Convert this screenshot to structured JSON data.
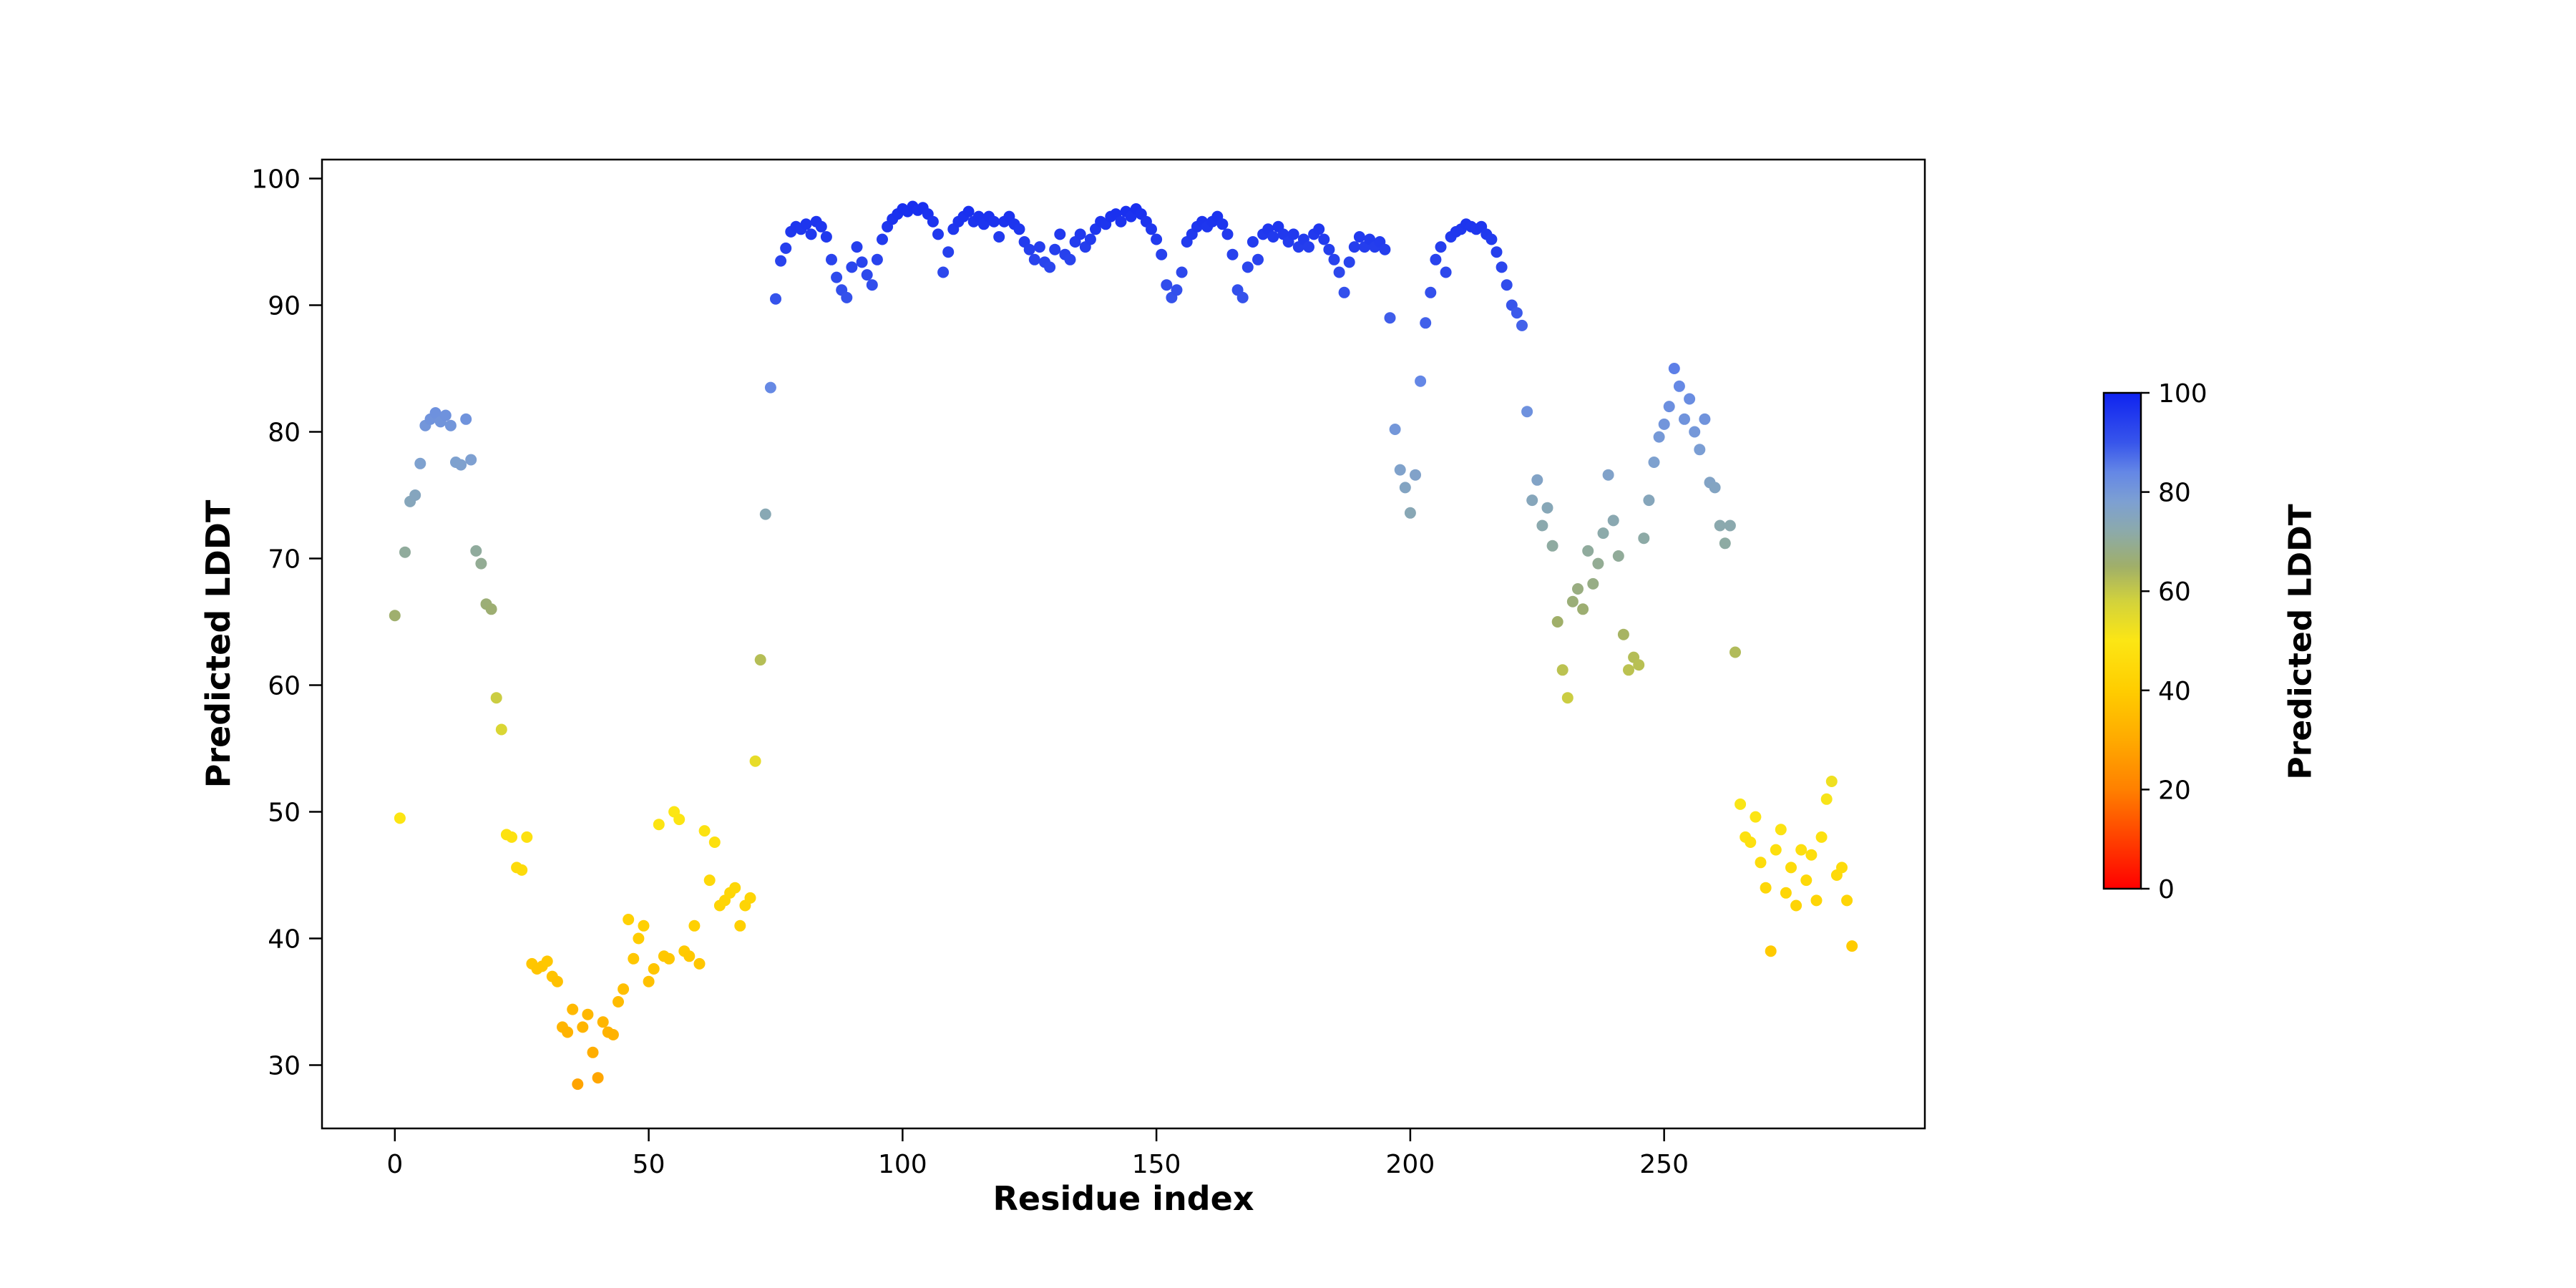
{
  "figure": {
    "background": "#ffffff",
    "frame_color": "#000000",
    "text_color": "#000000"
  },
  "chart_data": {
    "type": "scatter",
    "title": "",
    "xlabel": "Residue index",
    "ylabel": "Predicted LDDT",
    "xlim": [
      -14.35,
      301.35
    ],
    "ylim": [
      25.0,
      101.5
    ],
    "xticks": [
      0,
      50,
      100,
      150,
      200,
      250
    ],
    "yticks": [
      30,
      40,
      50,
      60,
      70,
      80,
      90,
      100
    ],
    "grid": false,
    "marker_size": 8,
    "colorbar": {
      "label": "Predicted LDDT",
      "min": 0,
      "max": 100,
      "ticks": [
        0,
        20,
        40,
        60,
        80,
        100
      ]
    },
    "colormap_stops": [
      [
        0.0,
        [
          255,
          0,
          0
        ]
      ],
      [
        0.1,
        [
          255,
          64,
          0
        ]
      ],
      [
        0.2,
        [
          255,
          128,
          0
        ]
      ],
      [
        0.3,
        [
          255,
          170,
          0
        ]
      ],
      [
        0.4,
        [
          255,
          205,
          0
        ]
      ],
      [
        0.5,
        [
          252,
          230,
          20
        ]
      ],
      [
        0.58,
        [
          210,
          210,
          60
        ]
      ],
      [
        0.65,
        [
          160,
          175,
          105
        ]
      ],
      [
        0.72,
        [
          140,
          170,
          170
        ]
      ],
      [
        0.78,
        [
          125,
          160,
          210
        ]
      ],
      [
        0.84,
        [
          100,
          135,
          230
        ]
      ],
      [
        0.9,
        [
          55,
          85,
          235
        ]
      ],
      [
        1.0,
        [
          15,
          35,
          240
        ]
      ]
    ],
    "points": [
      [
        0,
        65.5
      ],
      [
        1,
        49.5
      ],
      [
        2,
        70.5
      ],
      [
        3,
        74.5
      ],
      [
        4,
        75.0
      ],
      [
        5,
        77.5
      ],
      [
        6,
        80.5
      ],
      [
        7,
        81.0
      ],
      [
        8,
        81.5
      ],
      [
        9,
        80.8
      ],
      [
        10,
        81.3
      ],
      [
        11,
        80.5
      ],
      [
        12,
        77.6
      ],
      [
        13,
        77.4
      ],
      [
        14,
        81.0
      ],
      [
        15,
        77.8
      ],
      [
        16,
        70.6
      ],
      [
        17,
        69.6
      ],
      [
        18,
        66.4
      ],
      [
        19,
        66.0
      ],
      [
        20,
        59.0
      ],
      [
        21,
        56.5
      ],
      [
        22,
        48.2
      ],
      [
        23,
        48.0
      ],
      [
        24,
        45.6
      ],
      [
        25,
        45.4
      ],
      [
        26,
        48.0
      ],
      [
        27,
        38.0
      ],
      [
        28,
        37.6
      ],
      [
        29,
        37.8
      ],
      [
        30,
        38.2
      ],
      [
        31,
        37.0
      ],
      [
        32,
        36.6
      ],
      [
        33,
        33.0
      ],
      [
        34,
        32.6
      ],
      [
        35,
        34.4
      ],
      [
        36,
        28.5
      ],
      [
        37,
        33.0
      ],
      [
        38,
        34.0
      ],
      [
        39,
        31.0
      ],
      [
        40,
        29.0
      ],
      [
        41,
        33.4
      ],
      [
        42,
        32.6
      ],
      [
        43,
        32.4
      ],
      [
        44,
        35.0
      ],
      [
        45,
        36.0
      ],
      [
        46,
        41.5
      ],
      [
        47,
        38.4
      ],
      [
        48,
        40.0
      ],
      [
        49,
        41.0
      ],
      [
        50,
        36.6
      ],
      [
        51,
        37.6
      ],
      [
        52,
        49.0
      ],
      [
        53,
        38.6
      ],
      [
        54,
        38.4
      ],
      [
        55,
        50.0
      ],
      [
        56,
        49.4
      ],
      [
        57,
        39.0
      ],
      [
        58,
        38.6
      ],
      [
        59,
        41.0
      ],
      [
        60,
        38.0
      ],
      [
        61,
        48.5
      ],
      [
        62,
        44.6
      ],
      [
        63,
        47.6
      ],
      [
        64,
        42.6
      ],
      [
        65,
        43.0
      ],
      [
        66,
        43.6
      ],
      [
        67,
        44.0
      ],
      [
        68,
        41.0
      ],
      [
        69,
        42.6
      ],
      [
        70,
        43.2
      ],
      [
        71,
        54.0
      ],
      [
        72,
        62.0
      ],
      [
        73,
        73.5
      ],
      [
        74,
        83.5
      ],
      [
        75,
        90.5
      ],
      [
        76,
        93.5
      ],
      [
        77,
        94.5
      ],
      [
        78,
        95.8
      ],
      [
        79,
        96.2
      ],
      [
        80,
        96.0
      ],
      [
        81,
        96.4
      ],
      [
        82,
        95.6
      ],
      [
        83,
        96.6
      ],
      [
        84,
        96.2
      ],
      [
        85,
        95.4
      ],
      [
        86,
        93.6
      ],
      [
        87,
        92.2
      ],
      [
        88,
        91.2
      ],
      [
        89,
        90.6
      ],
      [
        90,
        93.0
      ],
      [
        91,
        94.6
      ],
      [
        92,
        93.4
      ],
      [
        93,
        92.4
      ],
      [
        94,
        91.6
      ],
      [
        95,
        93.6
      ],
      [
        96,
        95.2
      ],
      [
        97,
        96.2
      ],
      [
        98,
        96.8
      ],
      [
        99,
        97.2
      ],
      [
        100,
        97.6
      ],
      [
        101,
        97.4
      ],
      [
        102,
        97.8
      ],
      [
        103,
        97.5
      ],
      [
        104,
        97.7
      ],
      [
        105,
        97.2
      ],
      [
        106,
        96.6
      ],
      [
        107,
        95.6
      ],
      [
        108,
        92.6
      ],
      [
        109,
        94.2
      ],
      [
        110,
        96.0
      ],
      [
        111,
        96.6
      ],
      [
        112,
        97.0
      ],
      [
        113,
        97.4
      ],
      [
        114,
        96.6
      ],
      [
        115,
        97.0
      ],
      [
        116,
        96.4
      ],
      [
        117,
        97.0
      ],
      [
        118,
        96.6
      ],
      [
        119,
        95.4
      ],
      [
        120,
        96.6
      ],
      [
        121,
        97.0
      ],
      [
        122,
        96.4
      ],
      [
        123,
        96.0
      ],
      [
        124,
        95.0
      ],
      [
        125,
        94.4
      ],
      [
        126,
        93.6
      ],
      [
        127,
        94.6
      ],
      [
        128,
        93.4
      ],
      [
        129,
        93.0
      ],
      [
        130,
        94.4
      ],
      [
        131,
        95.6
      ],
      [
        132,
        94.0
      ],
      [
        133,
        93.6
      ],
      [
        134,
        95.0
      ],
      [
        135,
        95.6
      ],
      [
        136,
        94.6
      ],
      [
        137,
        95.2
      ],
      [
        138,
        96.0
      ],
      [
        139,
        96.6
      ],
      [
        140,
        96.4
      ],
      [
        141,
        97.0
      ],
      [
        142,
        97.2
      ],
      [
        143,
        96.6
      ],
      [
        144,
        97.4
      ],
      [
        145,
        97.0
      ],
      [
        146,
        97.6
      ],
      [
        147,
        97.2
      ],
      [
        148,
        96.6
      ],
      [
        149,
        96.0
      ],
      [
        150,
        95.2
      ],
      [
        151,
        94.0
      ],
      [
        152,
        91.6
      ],
      [
        153,
        90.6
      ],
      [
        154,
        91.2
      ],
      [
        155,
        92.6
      ],
      [
        156,
        95.0
      ],
      [
        157,
        95.6
      ],
      [
        158,
        96.2
      ],
      [
        159,
        96.6
      ],
      [
        160,
        96.2
      ],
      [
        161,
        96.6
      ],
      [
        162,
        97.0
      ],
      [
        163,
        96.4
      ],
      [
        164,
        95.6
      ],
      [
        165,
        94.0
      ],
      [
        166,
        91.2
      ],
      [
        167,
        90.6
      ],
      [
        168,
        93.0
      ],
      [
        169,
        95.0
      ],
      [
        170,
        93.6
      ],
      [
        171,
        95.6
      ],
      [
        172,
        96.0
      ],
      [
        173,
        95.4
      ],
      [
        174,
        96.2
      ],
      [
        175,
        95.6
      ],
      [
        176,
        95.0
      ],
      [
        177,
        95.6
      ],
      [
        178,
        94.6
      ],
      [
        179,
        95.2
      ],
      [
        180,
        94.6
      ],
      [
        181,
        95.6
      ],
      [
        182,
        96.0
      ],
      [
        183,
        95.2
      ],
      [
        184,
        94.4
      ],
      [
        185,
        93.6
      ],
      [
        186,
        92.6
      ],
      [
        187,
        91.0
      ],
      [
        188,
        93.4
      ],
      [
        189,
        94.6
      ],
      [
        190,
        95.4
      ],
      [
        191,
        94.6
      ],
      [
        192,
        95.2
      ],
      [
        193,
        94.6
      ],
      [
        194,
        95.0
      ],
      [
        195,
        94.4
      ],
      [
        196,
        89.0
      ],
      [
        197,
        80.2
      ],
      [
        198,
        77.0
      ],
      [
        199,
        75.6
      ],
      [
        200,
        73.6
      ],
      [
        201,
        76.6
      ],
      [
        202,
        84.0
      ],
      [
        203,
        88.6
      ],
      [
        204,
        91.0
      ],
      [
        205,
        93.6
      ],
      [
        206,
        94.6
      ],
      [
        207,
        92.6
      ],
      [
        208,
        95.4
      ],
      [
        209,
        95.8
      ],
      [
        210,
        96.0
      ],
      [
        211,
        96.4
      ],
      [
        212,
        96.2
      ],
      [
        213,
        96.0
      ],
      [
        214,
        96.2
      ],
      [
        215,
        95.6
      ],
      [
        216,
        95.2
      ],
      [
        217,
        94.2
      ],
      [
        218,
        93.0
      ],
      [
        219,
        91.6
      ],
      [
        220,
        90.0
      ],
      [
        221,
        89.4
      ],
      [
        222,
        88.4
      ],
      [
        223,
        81.6
      ],
      [
        224,
        74.6
      ],
      [
        225,
        76.2
      ],
      [
        226,
        72.6
      ],
      [
        227,
        74.0
      ],
      [
        228,
        71.0
      ],
      [
        229,
        65.0
      ],
      [
        230,
        61.2
      ],
      [
        231,
        59.0
      ],
      [
        232,
        66.6
      ],
      [
        233,
        67.6
      ],
      [
        234,
        66.0
      ],
      [
        235,
        70.6
      ],
      [
        236,
        68.0
      ],
      [
        237,
        69.6
      ],
      [
        238,
        72.0
      ],
      [
        239,
        76.6
      ],
      [
        240,
        73.0
      ],
      [
        241,
        70.2
      ],
      [
        242,
        64.0
      ],
      [
        243,
        61.2
      ],
      [
        244,
        62.2
      ],
      [
        245,
        61.6
      ],
      [
        246,
        71.6
      ],
      [
        247,
        74.6
      ],
      [
        248,
        77.6
      ],
      [
        249,
        79.6
      ],
      [
        250,
        80.6
      ],
      [
        251,
        82.0
      ],
      [
        252,
        85.0
      ],
      [
        253,
        83.6
      ],
      [
        254,
        81.0
      ],
      [
        255,
        82.6
      ],
      [
        256,
        80.0
      ],
      [
        257,
        78.6
      ],
      [
        258,
        81.0
      ],
      [
        259,
        76.0
      ],
      [
        260,
        75.6
      ],
      [
        261,
        72.6
      ],
      [
        262,
        71.2
      ],
      [
        263,
        72.6
      ],
      [
        264,
        62.6
      ],
      [
        265,
        50.6
      ],
      [
        266,
        48.0
      ],
      [
        267,
        47.6
      ],
      [
        268,
        49.6
      ],
      [
        269,
        46.0
      ],
      [
        270,
        44.0
      ],
      [
        271,
        39.0
      ],
      [
        272,
        47.0
      ],
      [
        273,
        48.6
      ],
      [
        274,
        43.6
      ],
      [
        275,
        45.6
      ],
      [
        276,
        42.6
      ],
      [
        277,
        47.0
      ],
      [
        278,
        44.6
      ],
      [
        279,
        46.6
      ],
      [
        280,
        43.0
      ],
      [
        281,
        48.0
      ],
      [
        282,
        51.0
      ],
      [
        283,
        52.4
      ],
      [
        284,
        45.0
      ],
      [
        285,
        45.6
      ],
      [
        286,
        43.0
      ],
      [
        287,
        39.4
      ]
    ]
  }
}
